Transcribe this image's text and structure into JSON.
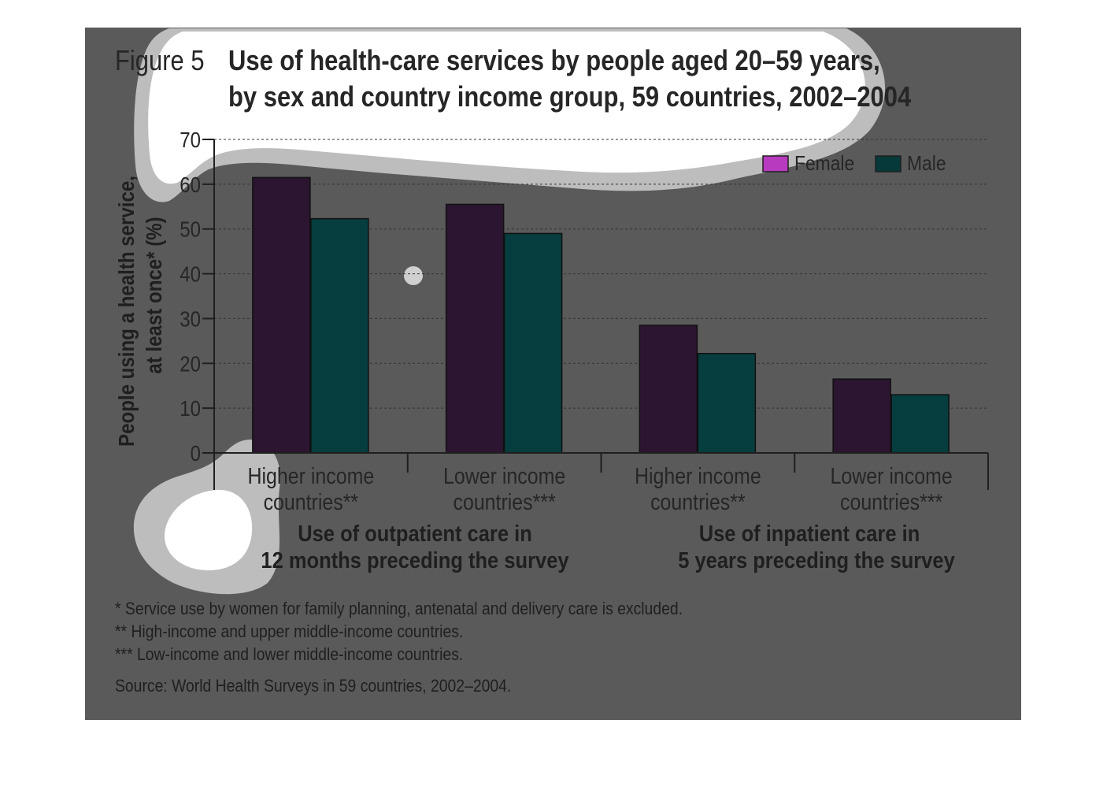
{
  "figure": {
    "label": "Figure 5",
    "title_line1": "Use of health-care services by people aged 20–59 years,",
    "title_line2": "by sex and country income group, 59 countries, 2002–2004"
  },
  "chart_data": {
    "type": "bar",
    "title": "Use of health-care services by people aged 20–59 years, by sex and country income group, 59 countries, 2002–2004",
    "ylabel_line1": "People using a health service,",
    "ylabel_line2": "at least once* (%)",
    "ylim": [
      0,
      70
    ],
    "yticks": [
      0,
      10,
      20,
      30,
      40,
      50,
      60,
      70
    ],
    "grid": true,
    "legend_position": "top-right",
    "categories": [
      {
        "line1": "Higher income",
        "line2": "countries**"
      },
      {
        "line1": "Lower income",
        "line2": "countries***"
      },
      {
        "line1": "Higher income",
        "line2": "countries**"
      },
      {
        "line1": "Lower income",
        "line2": "countries***"
      }
    ],
    "groups": [
      {
        "line1": "Use of outpatient care in",
        "line2": "12 months preceding the survey"
      },
      {
        "line1": "Use of inpatient care in",
        "line2": "5 years preceding the survey"
      }
    ],
    "series": [
      {
        "name": "Female",
        "values": [
          61.5,
          55.5,
          28.5,
          16.5
        ],
        "color": "#2b1530",
        "legend_color": "#b83bbf"
      },
      {
        "name": "Male",
        "values": [
          52.3,
          49,
          22.2,
          13
        ],
        "color": "#063d3e",
        "legend_color": "#06393a"
      }
    ]
  },
  "footnotes": {
    "note1": "* Service use by women for family planning, antenatal and delivery care is excluded.",
    "note2": "** High-income and upper middle-income countries.",
    "note3": "*** Low-income and lower middle-income countries.",
    "source": "Source: World Health Surveys in 59 countries, 2002–2004."
  },
  "colors": {
    "panel_background": "#5a5a5a",
    "axis": "#1f1f1f",
    "highlight_blob": "#ffffff",
    "highlight_halo": "#bdbdbd"
  }
}
